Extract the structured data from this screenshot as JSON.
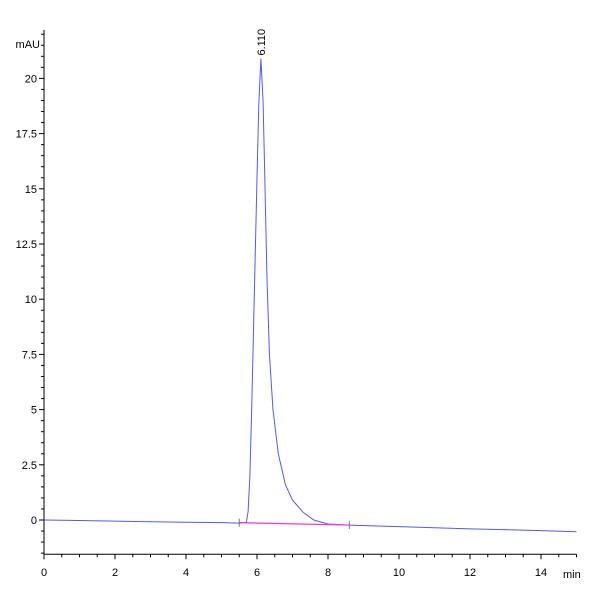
{
  "chart_data": {
    "type": "line",
    "title": "",
    "xlabel": "min",
    "ylabel": "mAU",
    "xlim": [
      0,
      15
    ],
    "ylim": [
      -1.55,
      22.2
    ],
    "x_ticks": [
      "0",
      "2",
      "4",
      "6",
      "8",
      "10",
      "12",
      "14"
    ],
    "y_ticks": [
      "0",
      "2.5",
      "5",
      "7.5",
      "10",
      "12.5",
      "15",
      "17.5",
      "20"
    ],
    "grid": false,
    "series": [
      {
        "color": "#3a3aff",
        "points": [
          [
            0,
            0
          ],
          [
            1,
            -0.02
          ],
          [
            2,
            -0.05
          ],
          [
            3,
            -0.08
          ],
          [
            4,
            -0.1
          ],
          [
            5,
            -0.12
          ],
          [
            5.5,
            -0.14
          ],
          [
            5.7,
            -0.1
          ],
          [
            5.75,
            0.4
          ],
          [
            5.8,
            2
          ],
          [
            5.85,
            5
          ],
          [
            5.9,
            8.5
          ],
          [
            5.95,
            12
          ],
          [
            6.0,
            15.5
          ],
          [
            6.05,
            18.8
          ],
          [
            6.11,
            20.9
          ],
          [
            6.17,
            19
          ],
          [
            6.22,
            15.5
          ],
          [
            6.28,
            11
          ],
          [
            6.35,
            7.5
          ],
          [
            6.45,
            5
          ],
          [
            6.6,
            3
          ],
          [
            6.8,
            1.6
          ],
          [
            7.0,
            0.9
          ],
          [
            7.3,
            0.35
          ],
          [
            7.6,
            0.0
          ],
          [
            8.0,
            -0.18
          ],
          [
            8.6,
            -0.23
          ],
          [
            10,
            -0.3
          ],
          [
            12,
            -0.4
          ],
          [
            14,
            -0.48
          ],
          [
            15,
            -0.53
          ]
        ]
      }
    ],
    "integration_baseline": {
      "color": "#ff33cc",
      "points": [
        [
          5.5,
          -0.12
        ],
        [
          8.6,
          -0.23
        ]
      ]
    },
    "peaks": [
      {
        "label": "6.110",
        "x": 6.11,
        "y": 20.9
      }
    ]
  }
}
